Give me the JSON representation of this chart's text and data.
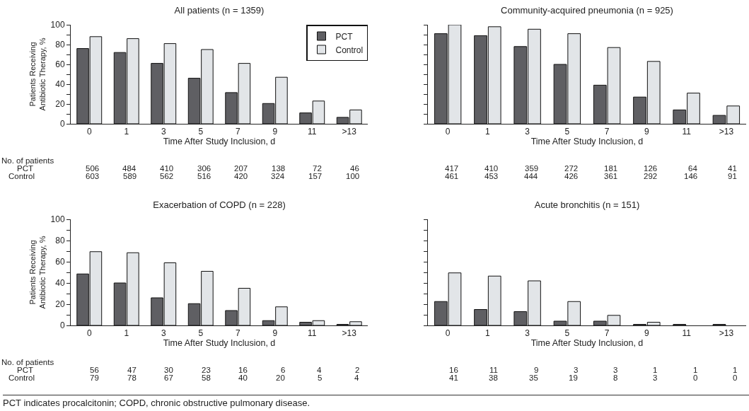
{
  "chart_data": [
    {
      "type": "bar",
      "title": "All patients (n = 1359)",
      "xlabel": "Time After Study Inclusion, d",
      "ylabel": "Patients Receiving\nAntibiotic Therapy, %",
      "categories": [
        "0",
        "1",
        "3",
        "5",
        "7",
        "9",
        "11",
        ">13"
      ],
      "series": [
        {
          "name": "PCT",
          "color": "#5f5f63",
          "values": [
            76,
            72,
            61,
            46,
            31.5,
            20.5,
            11,
            6.5
          ]
        },
        {
          "name": "Control",
          "color": "#e2e5e8",
          "values": [
            88,
            86,
            81,
            75,
            61,
            47,
            23,
            14
          ]
        }
      ],
      "ylim": [
        0,
        100
      ],
      "yticks": [
        0,
        {
          "value": 10,
          "label": null
        },
        20,
        {
          "value": 30,
          "label": null
        },
        40,
        {
          "value": 50,
          "label": null
        },
        60,
        {
          "value": 70,
          "label": null
        },
        80,
        {
          "value": 90,
          "label": null
        },
        100
      ],
      "grid": false,
      "legend": "top right",
      "annotations": [
        "No. of patients",
        "PCT 506 484 410 306 207 138 72 46",
        "Control 603 589 562 516 420 324 157 100"
      ]
    },
    {
      "type": "bar",
      "title": "Community-acquired pneumonia (n = 925)",
      "xlabel": "Time After Study Inclusion, d",
      "categories": [
        "0",
        "1",
        "3",
        "5",
        "7",
        "9",
        "11",
        ">13"
      ],
      "series": [
        {
          "color": "#5f5f63",
          "values": [
            91,
            89,
            78,
            60,
            39,
            27,
            14,
            8.5
          ]
        },
        {
          "color": "#e2e5e8",
          "values": [
            100,
            98,
            95.5,
            91,
            77,
            63,
            31,
            18
          ]
        }
      ],
      "ylim": [
        0,
        100
      ],
      "yticks": [
        0,
        {
          "value": 10,
          "label": null
        },
        20,
        {
          "value": 30,
          "label": null
        },
        40,
        {
          "value": 50,
          "label": null
        },
        60,
        {
          "value": 70,
          "label": null
        },
        80,
        {
          "value": 90,
          "label": null
        },
        100
      ],
      "grid": false,
      "tick_labels": "x",
      "annotations": [
        "417 410 359 272 181 126 64 41",
        "461 453 444 426 361 292 146 91"
      ]
    },
    {
      "type": "bar",
      "title": "Exacerbation of COPD (n = 228)",
      "xlabel": "Time After Study Inclusion, d",
      "ylabel": "Patients Receiving\nAntibiotic Therapy, %",
      "categories": [
        "0",
        "1",
        "3",
        "5",
        "7",
        "9",
        "11",
        ">13"
      ],
      "series": [
        {
          "color": "#5f5f63",
          "values": [
            48.5,
            40,
            26,
            20.5,
            14,
            4.5,
            3,
            1
          ]
        },
        {
          "color": "#e2e5e8",
          "values": [
            69.5,
            68.5,
            59,
            51,
            35,
            17.5,
            4.5,
            3.5
          ]
        }
      ],
      "ylim": [
        0,
        100
      ],
      "yticks": [
        0,
        {
          "value": 10,
          "label": null
        },
        20,
        {
          "value": 30,
          "label": null
        },
        40,
        {
          "value": 50,
          "label": null
        },
        60,
        {
          "value": 70,
          "label": null
        },
        80,
        {
          "value": 90,
          "label": null
        },
        100
      ],
      "grid": false,
      "annotations": [
        "No. of patients",
        "PCT 56 47 30 23 16 6 4 2",
        "Control 79 78 67 58 40 20 5 4"
      ]
    },
    {
      "type": "bar",
      "title": "Acute bronchitis (n = 151)",
      "xlabel": "Time After Study Inclusion, d",
      "categories": [
        "0",
        "1",
        "3",
        "5",
        "7",
        "9",
        "11",
        ">13"
      ],
      "series": [
        {
          "color": "#5f5f63",
          "values": [
            22.5,
            15,
            13,
            4,
            4,
            1,
            1,
            1
          ]
        },
        {
          "color": "#e2e5e8",
          "values": [
            49.5,
            46.5,
            42,
            22.5,
            9.5,
            3,
            0,
            0
          ]
        }
      ],
      "ylim": [
        0,
        100
      ],
      "yticks": [
        0,
        {
          "value": 10,
          "label": null
        },
        20,
        {
          "value": 30,
          "label": null
        },
        40,
        {
          "value": 50,
          "label": null
        },
        60,
        {
          "value": 70,
          "label": null
        },
        80,
        {
          "value": 90,
          "label": null
        },
        100
      ],
      "grid": false,
      "tick_labels": "x",
      "annotations": [
        "16 11 9 3 3 1 1 1",
        "41 38 35 19 8 3 0 0",
        "PCT indicates procalcitonin; COPD, chronic obstructive pulmonary disease."
      ]
    }
  ]
}
